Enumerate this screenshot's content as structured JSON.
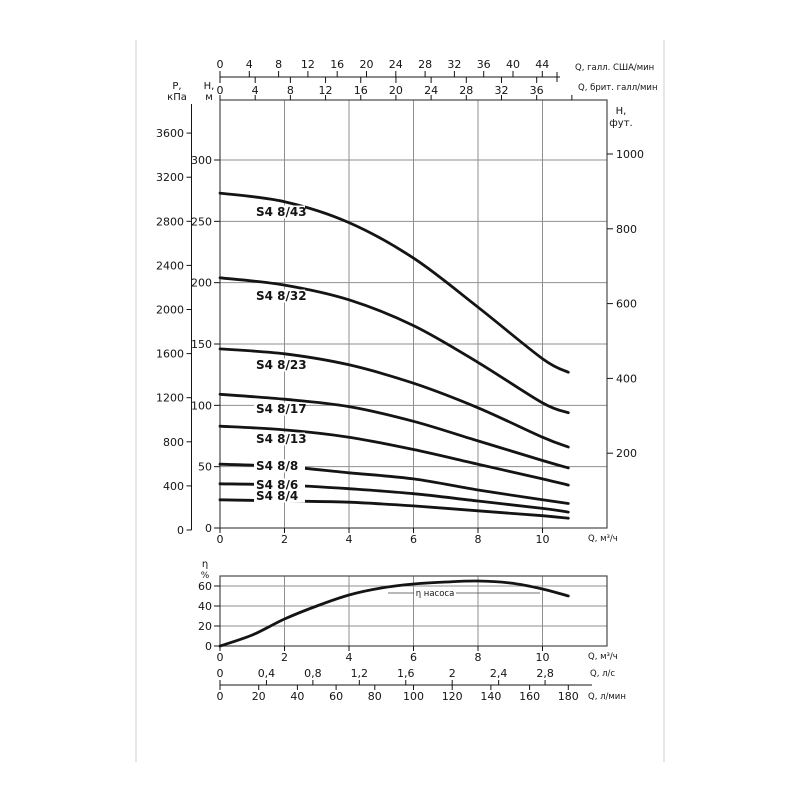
{
  "page": {
    "bg": "#ffffff",
    "ink": "#141414",
    "grid": "#8f8f8f",
    "frame": "#4a4a4a",
    "page_edge": "#cccccc"
  },
  "chart_data": [
    {
      "id": "head_capacity_chart",
      "type": "line",
      "title": "",
      "xlabel": "Q, м³/ч",
      "x_ticks": [
        0,
        2,
        4,
        6,
        8,
        10
      ],
      "x_range": [
        0,
        12
      ],
      "grid": true,
      "top_axis_us": {
        "label": "Q, галл. США/мин",
        "ticks": [
          0,
          4,
          8,
          12,
          16,
          20,
          24,
          28,
          32,
          36,
          40,
          44
        ],
        "gal_per_m3h": 4.4029
      },
      "top_axis_imp": {
        "label": "Q, брит. галл/мин",
        "ticks": [
          0,
          4,
          8,
          12,
          16,
          20,
          24,
          28,
          32,
          36
        ],
        "gal_per_m3h": 3.6662
      },
      "y_axis_pressure": {
        "label_line1": "P,",
        "label_line2": "кПа",
        "ticks": [
          0,
          400,
          800,
          1200,
          1600,
          2000,
          2400,
          2800,
          3200,
          3600
        ]
      },
      "y_axis_head": {
        "label_line1": "H,",
        "label_line2": "м",
        "ticks": [
          0,
          50,
          100,
          150,
          200,
          250,
          300
        ],
        "range": [
          0,
          349
        ]
      },
      "y_axis_feet": {
        "label_line1": "Н,",
        "label_line2": "фут.",
        "ticks": [
          200,
          400,
          600,
          800,
          1000
        ]
      },
      "series": [
        {
          "name": "S4 8/43",
          "points": [
            [
              0,
              273
            ],
            [
              2,
              266
            ],
            [
              4,
              249
            ],
            [
              6,
              220
            ],
            [
              8,
              180
            ],
            [
              10,
              138
            ],
            [
              10.8,
              127
            ]
          ]
        },
        {
          "name": "S4 8/32",
          "points": [
            [
              0,
              204
            ],
            [
              2,
              198
            ],
            [
              4,
              186
            ],
            [
              6,
              165
            ],
            [
              8,
              135
            ],
            [
              10,
              102
            ],
            [
              10.8,
              94
            ]
          ]
        },
        {
          "name": "S4 8/23",
          "points": [
            [
              0,
              146
            ],
            [
              2,
              142
            ],
            [
              4,
              133
            ],
            [
              6,
              118
            ],
            [
              8,
              98
            ],
            [
              10,
              74
            ],
            [
              10.8,
              66
            ]
          ]
        },
        {
          "name": "S4 8/17",
          "points": [
            [
              0,
              109
            ],
            [
              2,
              105
            ],
            [
              4,
              99
            ],
            [
              6,
              87
            ],
            [
              8,
              71
            ],
            [
              10,
              55
            ],
            [
              10.8,
              49
            ]
          ]
        },
        {
          "name": "S4 8/13",
          "points": [
            [
              0,
              83
            ],
            [
              2,
              80
            ],
            [
              4,
              74
            ],
            [
              6,
              64
            ],
            [
              8,
              52
            ],
            [
              10,
              40
            ],
            [
              10.8,
              35
            ]
          ]
        },
        {
          "name": "S4 8/8",
          "points": [
            [
              0,
              52
            ],
            [
              2,
              50
            ],
            [
              4,
              45
            ],
            [
              6,
              40
            ],
            [
              8,
              31
            ],
            [
              10,
              23
            ],
            [
              10.8,
              20
            ]
          ]
        },
        {
          "name": "S4 8/6",
          "points": [
            [
              0,
              36
            ],
            [
              2,
              35
            ],
            [
              4,
              32
            ],
            [
              6,
              28
            ],
            [
              8,
              22
            ],
            [
              10,
              16
            ],
            [
              10.8,
              13
            ]
          ]
        },
        {
          "name": "S4 8/4",
          "points": [
            [
              0,
              23
            ],
            [
              2,
              22
            ],
            [
              4,
              21
            ],
            [
              6,
              18
            ],
            [
              8,
              14
            ],
            [
              10,
              10
            ],
            [
              10.8,
              8
            ]
          ]
        }
      ]
    },
    {
      "id": "efficiency_chart",
      "type": "line",
      "ylabel_line1": "η",
      "ylabel_line2": "%",
      "y_ticks": [
        0,
        20,
        40,
        60
      ],
      "x_ticks": [
        0,
        2,
        4,
        6,
        8,
        10
      ],
      "xlabel": "Q, м³/ч",
      "annotation": "η насоса",
      "grid": true,
      "series": [
        {
          "name": "η насоса",
          "points": [
            [
              0,
              0
            ],
            [
              1,
              11
            ],
            [
              2,
              27
            ],
            [
              3,
              40
            ],
            [
              4,
              51
            ],
            [
              5,
              58
            ],
            [
              6,
              62
            ],
            [
              7,
              64
            ],
            [
              8,
              65
            ],
            [
              9,
              63
            ],
            [
              10,
              57
            ],
            [
              10.8,
              50
            ]
          ]
        }
      ]
    }
  ],
  "footer_axes": [
    {
      "label": "Q, л/с",
      "tick_labels": [
        "0",
        "0,4",
        "0,8",
        "1,2",
        "1,6",
        "2",
        "2,4",
        "2,8"
      ],
      "tick_values": [
        0,
        0.4,
        0.8,
        1.2,
        1.6,
        2,
        2.4,
        2.8
      ],
      "m3h_per_unit": 3.6
    },
    {
      "label": "Q, л/мин",
      "tick_labels": [
        "0",
        "20",
        "40",
        "60",
        "80",
        "100",
        "120",
        "140",
        "160",
        "180"
      ],
      "tick_values": [
        0,
        20,
        40,
        60,
        80,
        100,
        120,
        140,
        160,
        180
      ],
      "m3h_per_unit": 0.06
    }
  ]
}
